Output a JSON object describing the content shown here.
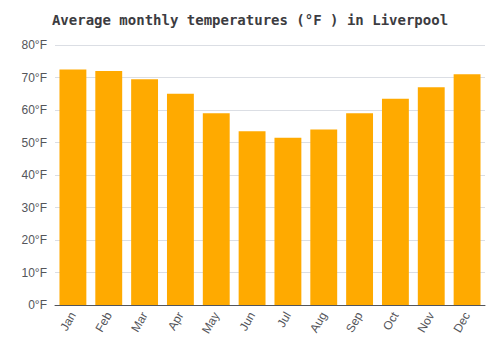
{
  "chart_data": {
    "type": "bar",
    "title": "Average monthly temperatures (°F ) in Liverpool",
    "categories": [
      "Jan",
      "Feb",
      "Mar",
      "Apr",
      "May",
      "Jun",
      "Jul",
      "Aug",
      "Sep",
      "Oct",
      "Nov",
      "Dec"
    ],
    "values": [
      72.5,
      72.0,
      69.5,
      65.0,
      59.0,
      53.5,
      51.5,
      54.0,
      59.0,
      63.5,
      67.0,
      71.0
    ],
    "color": "#FFAA00",
    "ylim": [
      0,
      80
    ],
    "yticks": [
      {
        "value": 0,
        "label": "0°F"
      },
      {
        "value": 10,
        "label": "10°F"
      },
      {
        "value": 20,
        "label": "20°F"
      },
      {
        "value": 30,
        "label": "30°F"
      },
      {
        "value": 40,
        "label": "40°F"
      },
      {
        "value": 50,
        "label": "50°F"
      },
      {
        "value": 60,
        "label": "60°F"
      },
      {
        "value": 70,
        "label": "70°F"
      },
      {
        "value": 80,
        "label": "80°F"
      }
    ],
    "grid": true
  }
}
